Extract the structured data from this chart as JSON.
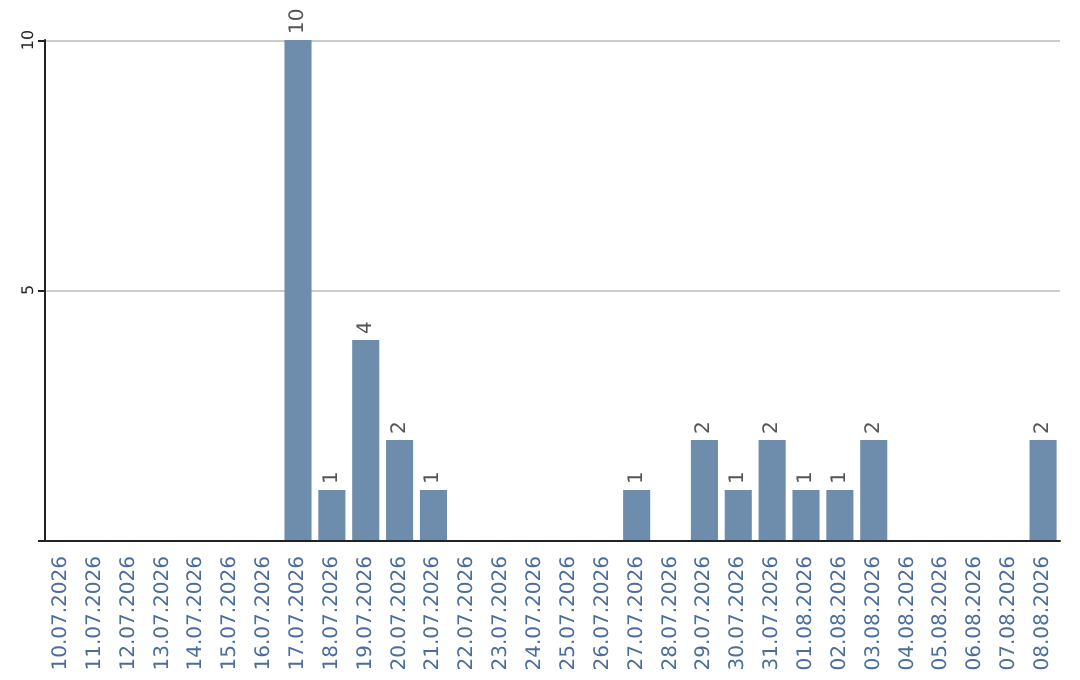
{
  "chart_data": {
    "type": "bar",
    "categories": [
      "10.07.2026",
      "11.07.2026",
      "12.07.2026",
      "13.07.2026",
      "14.07.2026",
      "15.07.2026",
      "16.07.2026",
      "17.07.2026",
      "18.07.2026",
      "19.07.2026",
      "20.07.2026",
      "21.07.2026",
      "22.07.2026",
      "23.07.2026",
      "24.07.2026",
      "25.07.2026",
      "26.07.2026",
      "27.07.2026",
      "28.07.2026",
      "29.07.2026",
      "30.07.2026",
      "31.07.2026",
      "01.08.2026",
      "02.08.2026",
      "03.08.2026",
      "04.08.2026",
      "05.08.2026",
      "06.08.2026",
      "07.08.2026",
      "08.08.2026"
    ],
    "values": [
      0,
      0,
      0,
      0,
      0,
      0,
      0,
      10,
      1,
      4,
      2,
      1,
      0,
      0,
      0,
      0,
      0,
      1,
      0,
      2,
      1,
      2,
      1,
      1,
      2,
      0,
      0,
      0,
      0,
      2
    ],
    "value_labels": [
      null,
      null,
      null,
      null,
      null,
      null,
      null,
      "10",
      "1",
      "4",
      "2",
      "1",
      null,
      null,
      null,
      null,
      null,
      "1",
      null,
      "2",
      "1",
      "2",
      "1",
      "1",
      "2",
      null,
      null,
      null,
      null,
      "2"
    ],
    "color": "#6e8cab",
    "ylim": [
      0,
      10
    ],
    "yticks": [
      {
        "value": 0,
        "label": null
      },
      5,
      10
    ],
    "grid": "y"
  }
}
